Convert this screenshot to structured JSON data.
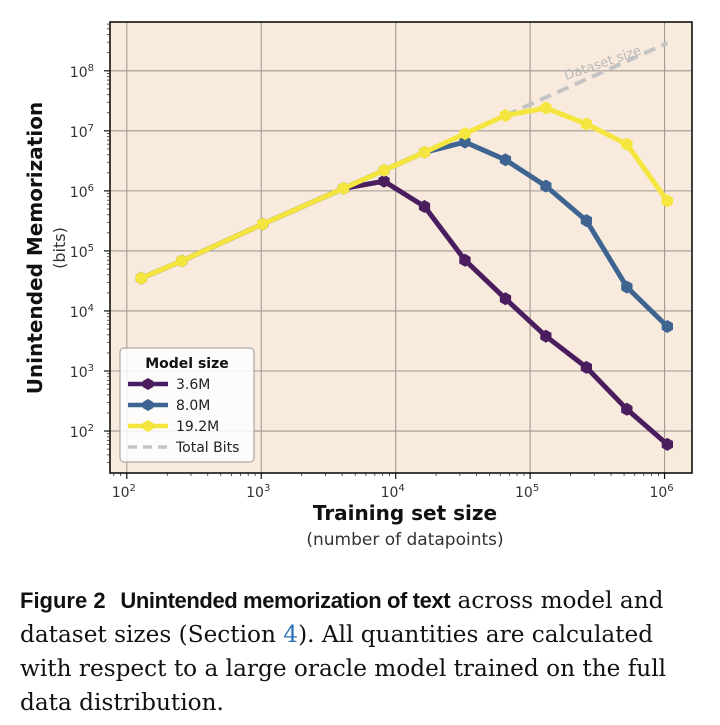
{
  "chart_data": {
    "type": "line",
    "xscale": "log",
    "yscale": "log",
    "xlim": [
      75,
      1600000
    ],
    "ylim": [
      20,
      650000000
    ],
    "x_ticks": [
      {
        "value": 100,
        "base": "10",
        "exp": "2"
      },
      {
        "value": 1000,
        "base": "10",
        "exp": "3"
      },
      {
        "value": 10000,
        "base": "10",
        "exp": "4"
      },
      {
        "value": 100000,
        "base": "10",
        "exp": "5"
      },
      {
        "value": 1000000,
        "base": "10",
        "exp": "6"
      }
    ],
    "y_ticks": [
      {
        "value": 100,
        "base": "10",
        "exp": "2"
      },
      {
        "value": 1000,
        "base": "10",
        "exp": "3"
      },
      {
        "value": 10000,
        "base": "10",
        "exp": "4"
      },
      {
        "value": 100000,
        "base": "10",
        "exp": "5"
      },
      {
        "value": 1000000,
        "base": "10",
        "exp": "6"
      },
      {
        "value": 10000000,
        "base": "10",
        "exp": "7"
      },
      {
        "value": 100000000,
        "base": "10",
        "exp": "8"
      }
    ],
    "xlabel": "Training set size",
    "xlabel_sub": "(number of datapoints)",
    "ylabel": "Unintended Memorization",
    "ylabel_sub": "(bits)",
    "annotation": "Dataset size",
    "grid": true,
    "legend": {
      "title": "Model size",
      "position": "bottom-left"
    },
    "series": [
      {
        "name": "3.6M",
        "color": "#4a1d5e",
        "x": [
          128,
          256,
          1024,
          4096,
          8192,
          16384,
          32768,
          65536,
          131072,
          262144,
          524288,
          1048576
        ],
        "values": [
          35000,
          68000,
          280000,
          1100000,
          1450000,
          550000,
          70000,
          16000,
          3800,
          1150,
          230,
          60
        ]
      },
      {
        "name": "8.0M",
        "color": "#3e6592",
        "x": [
          128,
          256,
          1024,
          4096,
          8192,
          16384,
          32768,
          65536,
          131072,
          262144,
          524288,
          1048576
        ],
        "values": [
          35000,
          68000,
          280000,
          1100000,
          2200000,
          4400000,
          6500000,
          3300000,
          1200000,
          320000,
          25000,
          5500
        ]
      },
      {
        "name": "19.2M",
        "color": "#f5e63f",
        "x": [
          128,
          256,
          1024,
          4096,
          8192,
          16384,
          32768,
          65536,
          131072,
          262144,
          524288,
          1048576
        ],
        "values": [
          35000,
          68000,
          280000,
          1100000,
          2200000,
          4400000,
          9000000,
          18000000,
          24000000,
          13000000,
          6000000,
          680000
        ]
      },
      {
        "name": "Total Bits",
        "color": "#c4c4c4",
        "dashed": true,
        "x": [
          65536,
          1048576
        ],
        "values": [
          18000000,
          290000000
        ]
      }
    ]
  },
  "caption": {
    "label": "Figure 2",
    "title": "Unintended memorization of text",
    "text_before_ref": " across model and dataset sizes (Section ",
    "ref": "4",
    "text_after_ref": "). All quantities are calculated with respect to a large oracle model trained on the full data distribution."
  }
}
